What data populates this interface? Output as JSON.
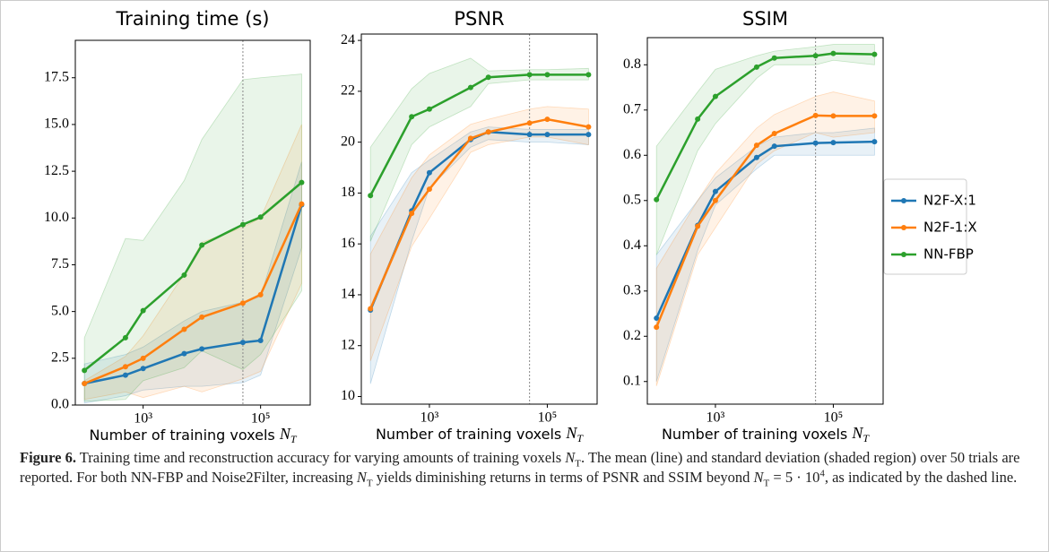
{
  "chart_data": [
    {
      "type": "line",
      "title": "Training time (s)",
      "xscale": "log",
      "xlabel": [
        {
          "text": "Number of training voxels "
        },
        {
          "text": "N",
          "style": "italic"
        },
        {
          "text": "T",
          "style": "sub"
        }
      ],
      "x": [
        100,
        500,
        1000,
        5000,
        10000,
        50000,
        100000,
        500000
      ],
      "xlim": [
        70,
        700000
      ],
      "xticks": [
        {
          "value": 1000,
          "label": "10³"
        },
        {
          "value": 100000,
          "label": "10⁵"
        }
      ],
      "ylim": [
        0,
        19.5
      ],
      "yticks": [
        {
          "value": 0,
          "label": "0.0"
        },
        2.5,
        {
          "value": 5,
          "label": "5.0"
        },
        7.5,
        {
          "value": 10,
          "label": "10.0"
        },
        12.5,
        {
          "value": 15,
          "label": "15.0"
        },
        17.5
      ],
      "vline": 50000,
      "series": [
        {
          "name": "N2F-X:1",
          "color": "#1f77b4",
          "values": [
            1.15,
            1.6,
            1.95,
            2.75,
            3.0,
            3.35,
            3.45,
            10.7
          ],
          "upper": [
            2.2,
            2.7,
            3.1,
            4.5,
            5.0,
            5.5,
            5.8,
            13.0
          ],
          "lower": [
            0.1,
            0.5,
            0.8,
            1.0,
            1.0,
            1.2,
            1.6,
            8.4
          ]
        },
        {
          "name": "N2F-1:X",
          "color": "#ff7f0e",
          "values": [
            1.15,
            2.05,
            2.5,
            4.05,
            4.7,
            5.45,
            5.9,
            10.75
          ],
          "upper": [
            1.3,
            2.6,
            3.7,
            7.0,
            8.7,
            9.5,
            10.0,
            15.0
          ],
          "lower": [
            0.3,
            0.7,
            0.4,
            1.0,
            0.7,
            1.4,
            1.8,
            6.5
          ]
        },
        {
          "name": "NN-FBP",
          "color": "#2ca02c",
          "values": [
            1.85,
            3.6,
            5.05,
            6.95,
            8.55,
            9.65,
            10.05,
            11.9
          ],
          "upper": [
            3.6,
            8.9,
            8.8,
            12.0,
            14.2,
            17.4,
            17.5,
            17.7
          ],
          "lower": [
            0.2,
            0.3,
            1.3,
            2.0,
            2.9,
            1.9,
            2.7,
            6.1
          ]
        }
      ]
    },
    {
      "type": "line",
      "title": "PSNR",
      "xscale": "log",
      "xlabel": [
        {
          "text": "Number of training voxels "
        },
        {
          "text": "N",
          "style": "italic"
        },
        {
          "text": "T",
          "style": "sub"
        }
      ],
      "x": [
        100,
        500,
        1000,
        5000,
        10000,
        50000,
        100000,
        500000
      ],
      "xlim": [
        70,
        700000
      ],
      "xticks": [
        {
          "value": 1000,
          "label": "10³"
        },
        {
          "value": 100000,
          "label": "10⁵"
        }
      ],
      "ylim": [
        9.7,
        24.25
      ],
      "yticks": [
        10,
        12,
        14,
        16,
        18,
        20,
        22,
        24
      ],
      "vline": 50000,
      "series": [
        {
          "name": "N2F-X:1",
          "color": "#1f77b4",
          "values": [
            13.4,
            17.3,
            18.8,
            20.1,
            20.4,
            20.3,
            20.3,
            20.3
          ],
          "upper": [
            16.3,
            18.8,
            19.3,
            20.4,
            20.6,
            20.5,
            20.5,
            20.5
          ],
          "lower": [
            10.5,
            16.1,
            18.2,
            19.8,
            20.1,
            20.0,
            20.0,
            19.9
          ]
        },
        {
          "name": "N2F-1:X",
          "color": "#ff7f0e",
          "values": [
            13.45,
            17.2,
            18.15,
            20.15,
            20.4,
            20.75,
            20.9,
            20.6
          ],
          "upper": [
            15.6,
            18.6,
            19.5,
            20.7,
            20.9,
            21.3,
            21.4,
            21.3
          ],
          "lower": [
            11.4,
            15.9,
            17.0,
            19.6,
            19.9,
            20.2,
            20.2,
            19.9
          ]
        },
        {
          "name": "NN-FBP",
          "color": "#2ca02c",
          "values": [
            17.9,
            21.0,
            21.3,
            22.15,
            22.55,
            22.65,
            22.65,
            22.65
          ],
          "upper": [
            19.8,
            22.1,
            22.7,
            23.3,
            22.8,
            22.85,
            22.85,
            22.9
          ],
          "lower": [
            16.1,
            19.9,
            20.6,
            21.4,
            22.3,
            22.45,
            22.45,
            22.45
          ]
        }
      ]
    },
    {
      "type": "line",
      "title": "SSIM",
      "xscale": "log",
      "xlabel": [
        {
          "text": "Number of training voxels "
        },
        {
          "text": "N",
          "style": "italic"
        },
        {
          "text": "T",
          "style": "sub"
        }
      ],
      "x": [
        100,
        500,
        1000,
        5000,
        10000,
        50000,
        100000,
        500000
      ],
      "xlim": [
        70,
        700000
      ],
      "xticks": [
        {
          "value": 1000,
          "label": "10³"
        },
        {
          "value": 100000,
          "label": "10⁵"
        }
      ],
      "ylim": [
        0.05,
        0.86
      ],
      "yticks": [
        0.1,
        0.2,
        0.3,
        0.4,
        0.5,
        0.6,
        0.7,
        0.8
      ],
      "vline": 50000,
      "series": [
        {
          "name": "N2F-X:1",
          "color": "#1f77b4",
          "values": [
            0.24,
            0.445,
            0.52,
            0.595,
            0.62,
            0.627,
            0.628,
            0.63
          ],
          "upper": [
            0.38,
            0.5,
            0.55,
            0.62,
            0.64,
            0.65,
            0.65,
            0.66
          ],
          "lower": [
            0.1,
            0.39,
            0.49,
            0.57,
            0.6,
            0.6,
            0.6,
            0.6
          ]
        },
        {
          "name": "N2F-1:X",
          "color": "#ff7f0e",
          "values": [
            0.22,
            0.443,
            0.5,
            0.622,
            0.648,
            0.688,
            0.687,
            0.687
          ],
          "upper": [
            0.35,
            0.5,
            0.56,
            0.66,
            0.69,
            0.73,
            0.74,
            0.72
          ],
          "lower": [
            0.09,
            0.38,
            0.44,
            0.58,
            0.61,
            0.65,
            0.64,
            0.65
          ]
        },
        {
          "name": "NN-FBP",
          "color": "#2ca02c",
          "values": [
            0.502,
            0.68,
            0.73,
            0.795,
            0.815,
            0.82,
            0.825,
            0.823
          ],
          "upper": [
            0.62,
            0.74,
            0.79,
            0.82,
            0.83,
            0.84,
            0.845,
            0.845
          ],
          "lower": [
            0.38,
            0.61,
            0.67,
            0.77,
            0.8,
            0.8,
            0.81,
            0.8
          ]
        }
      ]
    }
  ],
  "caption": [
    {
      "text": "Figure 6.",
      "style": "bold"
    },
    {
      "text": " Training time and reconstruction accuracy for varying amounts of training voxels "
    },
    {
      "text": "N",
      "style": "italic"
    },
    {
      "text": "T",
      "style": "sub"
    },
    {
      "text": ". The mean (line) and standard deviation (shaded region) over 50 trials are reported. For both NN-FBP and Noise2Filter, increasing "
    },
    {
      "text": "N",
      "style": "italic"
    },
    {
      "text": "T",
      "style": "sub"
    },
    {
      "text": " yields diminishing returns in terms of PSNR and SSIM beyond "
    },
    {
      "text": "N",
      "style": "italic"
    },
    {
      "text": "T",
      "style": "sub"
    },
    {
      "text": " = 5 · 10"
    },
    {
      "text": "4",
      "style": "sup"
    },
    {
      "text": ", as indicated by the dashed line."
    }
  ]
}
